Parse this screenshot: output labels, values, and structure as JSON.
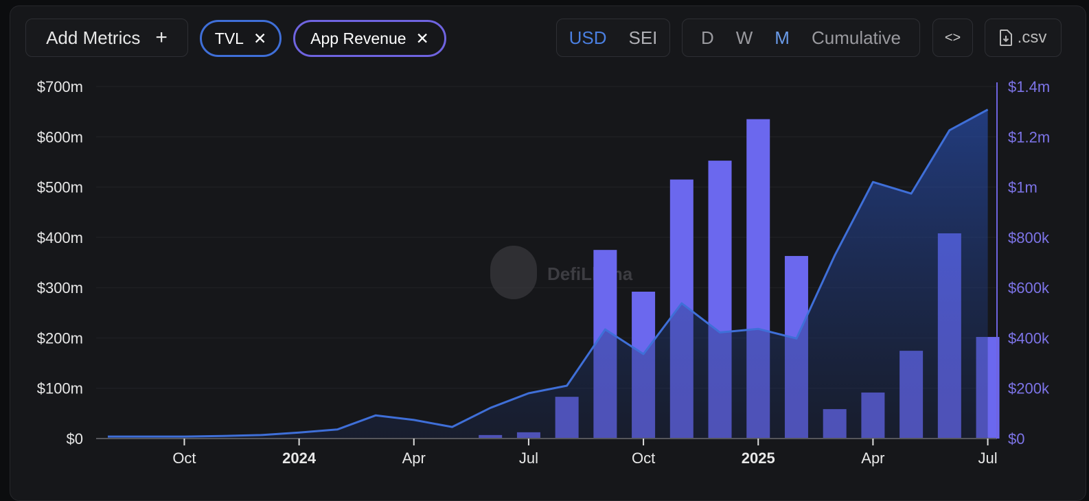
{
  "toolbar": {
    "add_metrics": "Add Metrics",
    "plus": "+",
    "metrics": [
      {
        "label": "TVL",
        "color": "#3f6fd8"
      },
      {
        "label": "App Revenue",
        "color": "#6f64e0"
      }
    ],
    "close": "✕",
    "currency": [
      "USD",
      "SEI"
    ],
    "currency_selected": "USD",
    "periods": [
      "D",
      "W",
      "M",
      "Cumulative"
    ],
    "period_selected": "M",
    "embed": "<>",
    "csv": ".csv"
  },
  "watermark": "DefiLlama",
  "chart_data": {
    "type": "bar+line",
    "months": [
      "2023-08",
      "2023-09",
      "2023-10",
      "2023-11",
      "2023-12",
      "2024-01",
      "2024-02",
      "2024-03",
      "2024-04",
      "2024-05",
      "2024-06",
      "2024-07",
      "2024-08",
      "2024-09",
      "2024-10",
      "2024-11",
      "2024-12",
      "2025-01",
      "2025-02",
      "2025-03",
      "2025-04",
      "2025-05",
      "2025-06",
      "2025-07"
    ],
    "x_tick_labels": [
      {
        "month": "2023-10",
        "label": "Oct"
      },
      {
        "month": "2024-01",
        "label": "2024",
        "bold": true
      },
      {
        "month": "2024-04",
        "label": "Apr"
      },
      {
        "month": "2024-07",
        "label": "Jul"
      },
      {
        "month": "2024-10",
        "label": "Oct"
      },
      {
        "month": "2025-01",
        "label": "2025",
        "bold": true
      },
      {
        "month": "2025-04",
        "label": "Apr"
      },
      {
        "month": "2025-07",
        "label": "Jul"
      }
    ],
    "left_axis": {
      "ylim": [
        0,
        700000000
      ],
      "ticks": [
        "$0",
        "$100m",
        "$200m",
        "$300m",
        "$400m",
        "$500m",
        "$600m",
        "$700m"
      ]
    },
    "right_axis": {
      "ylim": [
        0,
        1400000
      ],
      "ticks": [
        "$0",
        "$200k",
        "$400k",
        "$600k",
        "$800k",
        "$1m",
        "$1.2m",
        "$1.4m"
      ]
    },
    "series": [
      {
        "name": "TVL",
        "type": "line",
        "axis": "left",
        "color": "#3f6fd8",
        "values": [
          4000000,
          4000000,
          4000000,
          5000000,
          7000000,
          12000000,
          18000000,
          46000000,
          37000000,
          23000000,
          61000000,
          90000000,
          105000000,
          217000000,
          168000000,
          269000000,
          211000000,
          218000000,
          199000000,
          364000000,
          510000000,
          487000000,
          613000000,
          654000000
        ]
      },
      {
        "name": "App Revenue",
        "type": "bar",
        "axis": "right",
        "color": "#6b68ee",
        "values": [
          0,
          0,
          0,
          0,
          0,
          0,
          0,
          0,
          0,
          0,
          14000,
          25000,
          166000,
          750000,
          584000,
          1030000,
          1105000,
          1270000,
          726000,
          117000,
          183000,
          349000,
          816000,
          404000
        ]
      }
    ],
    "grid": true
  }
}
